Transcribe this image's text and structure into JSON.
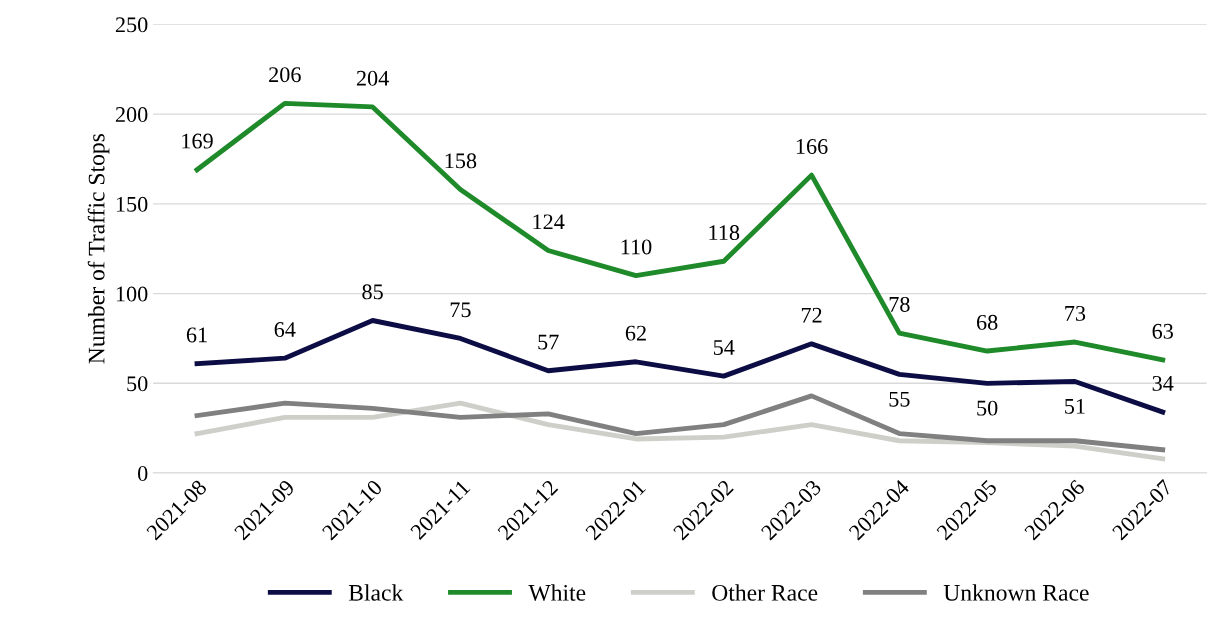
{
  "chart_data": {
    "type": "line",
    "ylabel": "Number of Traffic Stops",
    "categories": [
      "2021-08",
      "2021-09",
      "2021-10",
      "2021-11",
      "2021-12",
      "2022-01",
      "2022-02",
      "2022-03",
      "2022-04",
      "2022-05",
      "2022-06",
      "2022-07"
    ],
    "series": [
      {
        "name": "Black",
        "color": "#0d0d45",
        "values": [
          61,
          64,
          85,
          75,
          57,
          62,
          54,
          72,
          55,
          50,
          51,
          34
        ],
        "value_labels": [
          "61",
          "64",
          "85",
          "75",
          "57",
          "62",
          "54",
          "72",
          "55",
          "50",
          "51",
          "34"
        ]
      },
      {
        "name": "White",
        "color": "#1f8a2a",
        "values": [
          169,
          206,
          204,
          158,
          124,
          110,
          118,
          166,
          78,
          68,
          73,
          63
        ],
        "value_labels": [
          "169",
          "206",
          "204",
          "158",
          "124",
          "110",
          "118",
          "166",
          "78",
          "68",
          "73",
          "63"
        ]
      },
      {
        "name": "Other Race",
        "color": "#cfcfca",
        "values": [
          22,
          31,
          31,
          39,
          27,
          19,
          20,
          27,
          18,
          17,
          15,
          8
        ]
      },
      {
        "name": "Unknown Race",
        "color": "#808080",
        "values": [
          32,
          39,
          36,
          31,
          33,
          22,
          27,
          43,
          22,
          18,
          18,
          13
        ]
      }
    ],
    "ylim": [
      0,
      250
    ],
    "yticks": [
      0,
      50,
      100,
      150,
      200,
      250
    ],
    "grid": "y",
    "legend": "bottom",
    "marker": "none",
    "line_style": "solid"
  }
}
